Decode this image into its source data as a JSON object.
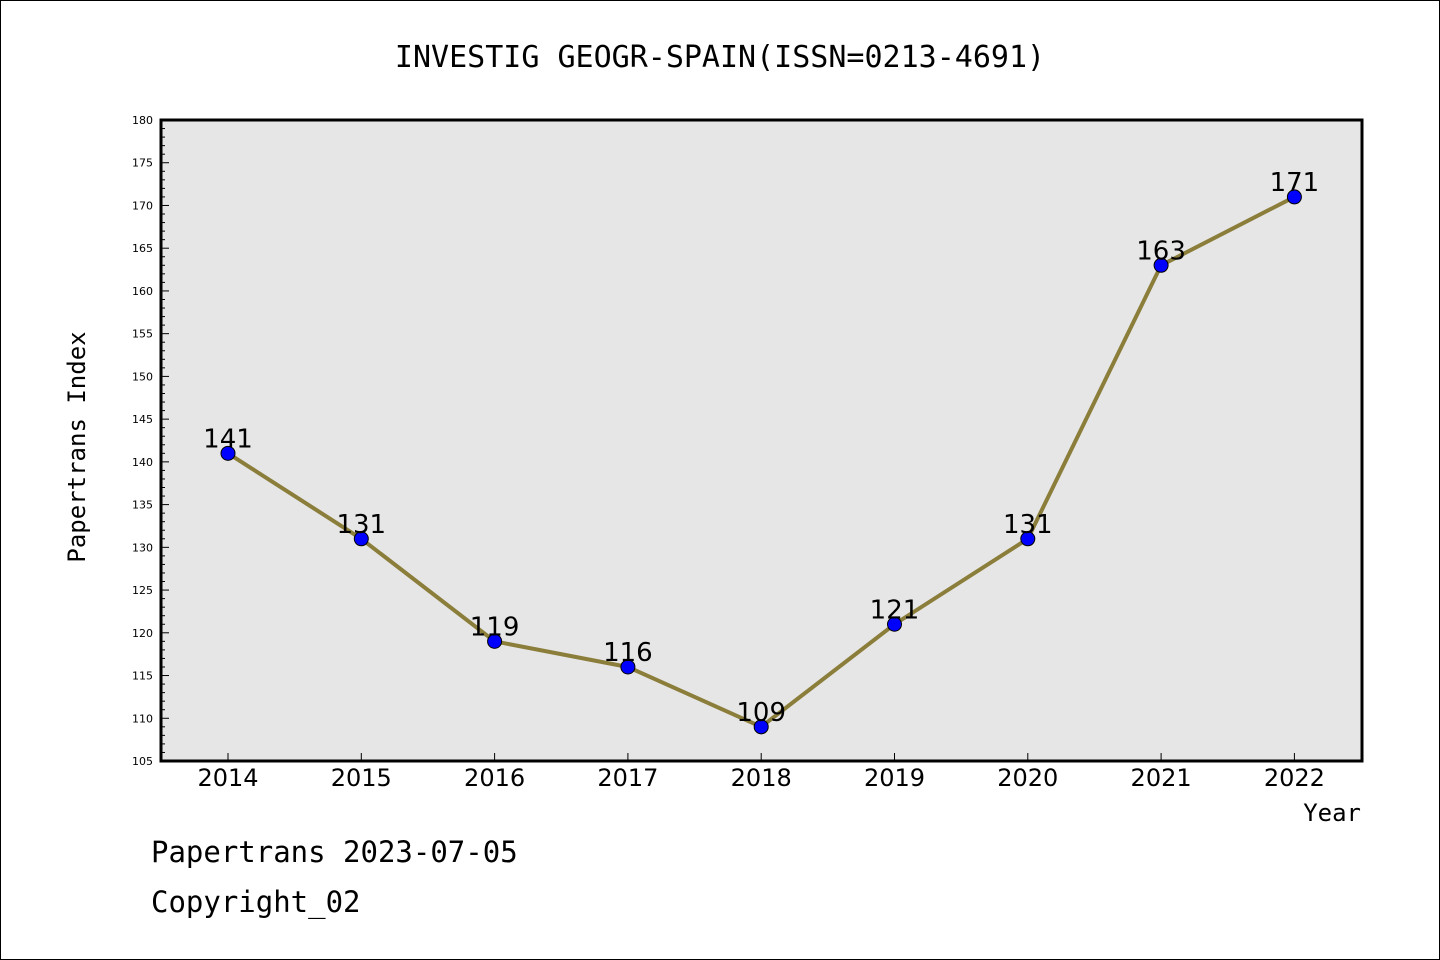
{
  "chart_data": {
    "type": "line",
    "title": "INVESTIG GEOGR-SPAIN(ISSN=0213-4691)",
    "xlabel": "Year",
    "ylabel": "Papertrans Index",
    "categories": [
      "2014",
      "2015",
      "2016",
      "2017",
      "2018",
      "2019",
      "2020",
      "2021",
      "2022"
    ],
    "series": [
      {
        "values": [
          141,
          131,
          119,
          116,
          109,
          121,
          131,
          163,
          171
        ]
      }
    ],
    "ylim": [
      105,
      180
    ],
    "yticks": [
      105,
      110,
      115,
      120,
      125,
      130,
      135,
      140,
      145,
      150,
      155,
      160,
      165,
      170,
      175,
      180
    ],
    "grid": false,
    "line_color": "#8b7d3a",
    "marker_color": "#0000ff",
    "plot_background": "#e6e6e6"
  },
  "footer": {
    "line1": "Papertrans 2023-07-05",
    "line2": "Copyright_02"
  }
}
